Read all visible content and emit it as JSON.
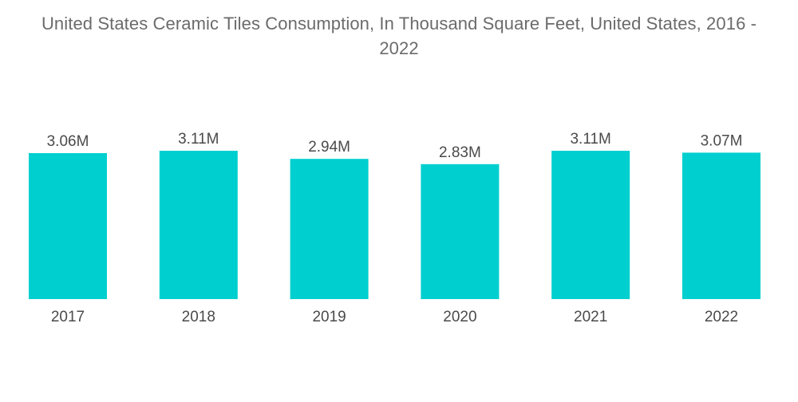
{
  "chart_data": {
    "type": "bar",
    "title_lines": [
      "United States Ceramic Tiles Consumption, In Thousand Square Feet, United States, 2016 -",
      "2022"
    ],
    "title": "United States Ceramic Tiles Consumption, In Thousand Square Feet, United States, 2016 - 2022",
    "xlabel": "",
    "ylabel": "",
    "categories": [
      "2017",
      "2018",
      "2019",
      "2020",
      "2021",
      "2022"
    ],
    "values": [
      3.06,
      3.11,
      2.94,
      2.83,
      3.11,
      3.07
    ],
    "value_labels": [
      "3.06M",
      "3.11M",
      "2.94M",
      "2.83M",
      "3.11M",
      "3.07M"
    ],
    "unit": "M",
    "ylim": [
      0,
      3.2
    ],
    "grid": false,
    "legend": "none",
    "colors": {
      "bar": "#00cfcf"
    }
  }
}
